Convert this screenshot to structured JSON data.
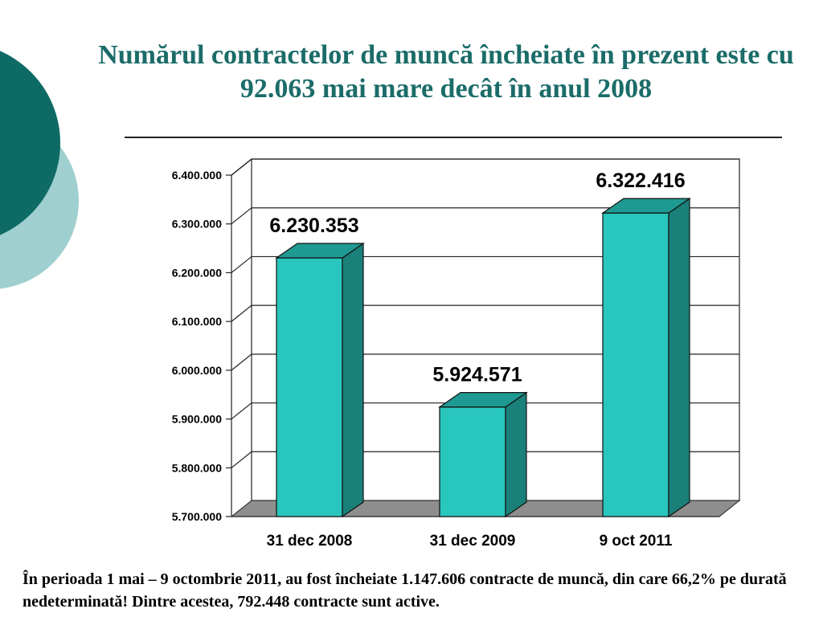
{
  "slide": {
    "title": "Numărul contractelor de muncă încheiate în prezent este cu 92.063 mai mare decât în anul 2008",
    "footer": "În perioada 1 mai – 9 octombrie 2011, au fost încheiate  1.147.606 contracte de muncă, din care 66,2% pe durată nedeterminată! Dintre acestea, 792.448 contracte sunt active."
  },
  "colors": {
    "title": "#1b6c69",
    "bar_front": "#29c6bd",
    "bar_side": "#1a8079",
    "bar_top": "#1f9a92",
    "deco_dark": "#0e6a65",
    "deco_light": "#9fcfce"
  },
  "chart_data": {
    "type": "bar",
    "style": "3d-column",
    "categories": [
      "31 dec 2008",
      "31 dec 2009",
      "9 oct 2011"
    ],
    "values": [
      6230353,
      5924571,
      6322416
    ],
    "data_labels": [
      "6.230.353",
      "5.924.571",
      "6.322.416"
    ],
    "ylim": [
      5700000,
      6400000
    ],
    "yticks": [
      5700000,
      5800000,
      5900000,
      6000000,
      6100000,
      6200000,
      6300000,
      6400000
    ],
    "ytick_labels": [
      "5.700.000",
      "5.800.000",
      "5.900.000",
      "6.000.000",
      "6.100.000",
      "6.200.000",
      "6.300.000",
      "6.400.000"
    ],
    "title": "",
    "xlabel": "",
    "ylabel": "",
    "grid": true,
    "legend": "none"
  }
}
